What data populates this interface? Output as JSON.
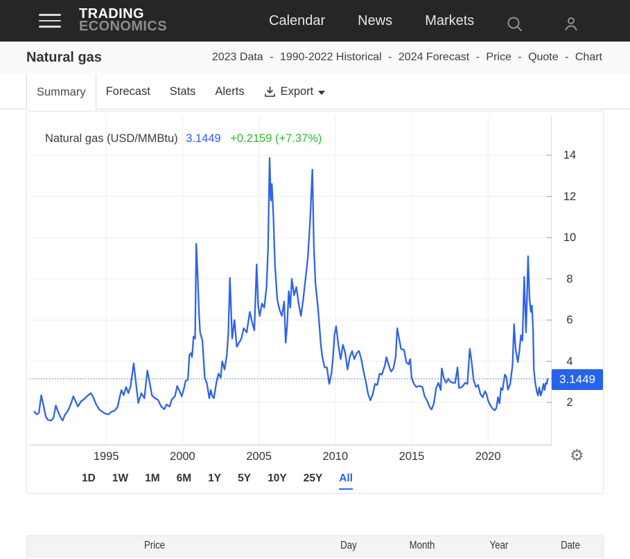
{
  "nav": {
    "brand_line1": "TRADING",
    "brand_line2": "ECONOMICS",
    "links": [
      "Calendar",
      "News",
      "Markets"
    ]
  },
  "header": {
    "title": "Natural gas",
    "breadcrumb": {
      "items": [
        "2023 Data",
        "1990-2022 Historical",
        "2024 Forecast",
        "Price",
        "Quote",
        "Chart"
      ],
      "separator": "-"
    }
  },
  "tabs": {
    "items": [
      "Summary",
      "Forecast",
      "Stats",
      "Alerts"
    ],
    "active": "Summary",
    "export_label": "Export"
  },
  "quote": {
    "instrument": "Natural gas (USD/MMBtu)",
    "value": "3.1449",
    "change": "+0.2159 (+7.37%)",
    "badge": "3.1449"
  },
  "colors": {
    "line": "#2e63e9",
    "badge": "#2563eb",
    "up_green": "#2db92d",
    "value_blue": "#2563eb"
  },
  "ranges": {
    "items": [
      "1D",
      "1W",
      "1M",
      "6M",
      "1Y",
      "5Y",
      "10Y",
      "25Y",
      "All"
    ],
    "active": "All"
  },
  "table": {
    "headers": [
      "Price",
      "Day",
      "Month",
      "Year",
      "Date"
    ]
  },
  "chart_data": {
    "type": "line",
    "title": "Natural gas (USD/MMBtu)",
    "ylabel": "USD/MMBtu",
    "current_value": 3.1449,
    "yticks": [
      2,
      4,
      6,
      8,
      10,
      12,
      14
    ],
    "xticks": [
      1995,
      2000,
      2005,
      2010,
      2015,
      2020
    ],
    "xlim": [
      1990,
      2024.2
    ],
    "ylim": [
      0,
      15.9
    ],
    "grid": true,
    "legend_position": "top-left",
    "points": [
      [
        1990.3,
        1.55
      ],
      [
        1990.45,
        1.42
      ],
      [
        1990.6,
        1.5
      ],
      [
        1990.75,
        2.35
      ],
      [
        1990.9,
        1.85
      ],
      [
        1991.05,
        1.3
      ],
      [
        1991.2,
        1.15
      ],
      [
        1991.4,
        1.12
      ],
      [
        1991.55,
        1.25
      ],
      [
        1991.7,
        1.85
      ],
      [
        1991.85,
        1.55
      ],
      [
        1992.0,
        1.3
      ],
      [
        1992.15,
        1.12
      ],
      [
        1992.3,
        1.4
      ],
      [
        1992.5,
        1.6
      ],
      [
        1992.7,
        1.95
      ],
      [
        1992.85,
        2.3
      ],
      [
        1993.0,
        2.05
      ],
      [
        1993.15,
        1.8
      ],
      [
        1993.35,
        2.05
      ],
      [
        1993.55,
        2.15
      ],
      [
        1993.75,
        2.3
      ],
      [
        1993.9,
        2.4
      ],
      [
        1994.0,
        2.45
      ],
      [
        1994.15,
        2.25
      ],
      [
        1994.35,
        1.9
      ],
      [
        1994.55,
        1.65
      ],
      [
        1994.75,
        1.55
      ],
      [
        1994.95,
        1.45
      ],
      [
        1995.15,
        1.42
      ],
      [
        1995.35,
        1.55
      ],
      [
        1995.55,
        1.6
      ],
      [
        1995.75,
        1.78
      ],
      [
        1995.9,
        2.3
      ],
      [
        1996.0,
        2.6
      ],
      [
        1996.15,
        2.35
      ],
      [
        1996.3,
        2.75
      ],
      [
        1996.45,
        2.45
      ],
      [
        1996.6,
        2.8
      ],
      [
        1996.8,
        3.9
      ],
      [
        1996.95,
        2.95
      ],
      [
        1997.1,
        1.98
      ],
      [
        1997.3,
        2.45
      ],
      [
        1997.5,
        2.2
      ],
      [
        1997.7,
        3.55
      ],
      [
        1997.85,
        2.95
      ],
      [
        1998.0,
        2.34
      ],
      [
        1998.2,
        2.2
      ],
      [
        1998.4,
        2.12
      ],
      [
        1998.6,
        1.8
      ],
      [
        1998.8,
        1.67
      ],
      [
        1998.95,
        1.9
      ],
      [
        1999.15,
        1.8
      ],
      [
        1999.3,
        2.15
      ],
      [
        1999.5,
        2.3
      ],
      [
        1999.65,
        2.8
      ],
      [
        1999.8,
        2.55
      ],
      [
        1999.95,
        2.3
      ],
      [
        2000.1,
        2.7
      ],
      [
        2000.2,
        3.05
      ],
      [
        2000.35,
        3.1
      ],
      [
        2000.45,
        4.3
      ],
      [
        2000.55,
        4.4
      ],
      [
        2000.62,
        4.2
      ],
      [
        2000.72,
        5.2
      ],
      [
        2000.82,
        5.1
      ],
      [
        2000.9,
        9.7
      ],
      [
        2001.0,
        8.0
      ],
      [
        2001.08,
        6.3
      ],
      [
        2001.15,
        5.4
      ],
      [
        2001.3,
        5.0
      ],
      [
        2001.45,
        3.2
      ],
      [
        2001.6,
        2.9
      ],
      [
        2001.75,
        2.2
      ],
      [
        2001.85,
        2.6
      ],
      [
        2001.95,
        2.3
      ],
      [
        2002.05,
        2.2
      ],
      [
        2002.2,
        2.9
      ],
      [
        2002.35,
        3.4
      ],
      [
        2002.5,
        3.2
      ],
      [
        2002.6,
        4.0
      ],
      [
        2002.75,
        3.6
      ],
      [
        2002.9,
        4.3
      ],
      [
        2003.0,
        5.4
      ],
      [
        2003.1,
        8.05
      ],
      [
        2003.25,
        5.1
      ],
      [
        2003.4,
        6.0
      ],
      [
        2003.55,
        4.7
      ],
      [
        2003.7,
        4.9
      ],
      [
        2003.85,
        5.1
      ],
      [
        2004.0,
        5.6
      ],
      [
        2004.2,
        5.4
      ],
      [
        2004.4,
        6.4
      ],
      [
        2004.55,
        5.9
      ],
      [
        2004.7,
        5.5
      ],
      [
        2004.85,
        8.7
      ],
      [
        2004.95,
        6.7
      ],
      [
        2005.05,
        6.2
      ],
      [
        2005.2,
        6.8
      ],
      [
        2005.35,
        6.6
      ],
      [
        2005.5,
        7.6
      ],
      [
        2005.6,
        9.5
      ],
      [
        2005.7,
        13.87
      ],
      [
        2005.78,
        11.8
      ],
      [
        2005.85,
        12.6
      ],
      [
        2005.95,
        11.0
      ],
      [
        2006.05,
        8.7
      ],
      [
        2006.2,
        7.0
      ],
      [
        2006.35,
        6.5
      ],
      [
        2006.5,
        6.2
      ],
      [
        2006.65,
        6.9
      ],
      [
        2006.75,
        4.9
      ],
      [
        2006.85,
        5.8
      ],
      [
        2006.95,
        7.4
      ],
      [
        2007.05,
        6.6
      ],
      [
        2007.15,
        8.0
      ],
      [
        2007.3,
        7.2
      ],
      [
        2007.45,
        7.6
      ],
      [
        2007.6,
        6.8
      ],
      [
        2007.75,
        6.2
      ],
      [
        2007.9,
        7.0
      ],
      [
        2008.05,
        8.0
      ],
      [
        2008.2,
        9.0
      ],
      [
        2008.35,
        10.8
      ],
      [
        2008.5,
        13.3
      ],
      [
        2008.6,
        9.5
      ],
      [
        2008.7,
        7.8
      ],
      [
        2008.85,
        6.7
      ],
      [
        2008.95,
        5.8
      ],
      [
        2009.05,
        4.8
      ],
      [
        2009.15,
        4.2
      ],
      [
        2009.3,
        3.7
      ],
      [
        2009.45,
        3.7
      ],
      [
        2009.6,
        2.9
      ],
      [
        2009.75,
        3.4
      ],
      [
        2009.85,
        4.2
      ],
      [
        2009.95,
        5.3
      ],
      [
        2010.05,
        5.7
      ],
      [
        2010.2,
        4.8
      ],
      [
        2010.35,
        4.1
      ],
      [
        2010.5,
        4.8
      ],
      [
        2010.65,
        4.4
      ],
      [
        2010.8,
        3.6
      ],
      [
        2010.95,
        4.2
      ],
      [
        2011.1,
        4.5
      ],
      [
        2011.25,
        4.1
      ],
      [
        2011.4,
        4.4
      ],
      [
        2011.55,
        4.5
      ],
      [
        2011.7,
        4.1
      ],
      [
        2011.85,
        3.5
      ],
      [
        2012.0,
        3.0
      ],
      [
        2012.15,
        2.4
      ],
      [
        2012.3,
        2.1
      ],
      [
        2012.45,
        2.4
      ],
      [
        2012.6,
        2.9
      ],
      [
        2012.75,
        2.85
      ],
      [
        2012.9,
        3.4
      ],
      [
        2013.05,
        3.35
      ],
      [
        2013.25,
        3.8
      ],
      [
        2013.35,
        4.2
      ],
      [
        2013.5,
        3.8
      ],
      [
        2013.65,
        3.5
      ],
      [
        2013.8,
        3.65
      ],
      [
        2013.95,
        4.2
      ],
      [
        2014.05,
        5.6
      ],
      [
        2014.3,
        4.6
      ],
      [
        2014.5,
        4.55
      ],
      [
        2014.65,
        3.95
      ],
      [
        2014.8,
        3.85
      ],
      [
        2014.9,
        4.1
      ],
      [
        2015.0,
        3.2
      ],
      [
        2015.15,
        2.9
      ],
      [
        2015.3,
        2.75
      ],
      [
        2015.5,
        2.8
      ],
      [
        2015.7,
        2.75
      ],
      [
        2015.85,
        2.3
      ],
      [
        2016.0,
        2.1
      ],
      [
        2016.2,
        1.75
      ],
      [
        2016.3,
        1.66
      ],
      [
        2016.45,
        1.95
      ],
      [
        2016.6,
        2.7
      ],
      [
        2016.75,
        2.95
      ],
      [
        2016.9,
        2.6
      ],
      [
        2016.97,
        3.65
      ],
      [
        2017.1,
        3.2
      ],
      [
        2017.25,
        2.95
      ],
      [
        2017.4,
        3.15
      ],
      [
        2017.55,
        3.0
      ],
      [
        2017.7,
        2.95
      ],
      [
        2017.85,
        2.95
      ],
      [
        2018.0,
        3.7
      ],
      [
        2018.1,
        2.7
      ],
      [
        2018.3,
        2.75
      ],
      [
        2018.5,
        2.95
      ],
      [
        2018.65,
        2.9
      ],
      [
        2018.8,
        4.6
      ],
      [
        2018.92,
        4.0
      ],
      [
        2019.05,
        3.1
      ],
      [
        2019.2,
        2.75
      ],
      [
        2019.35,
        2.85
      ],
      [
        2019.5,
        2.4
      ],
      [
        2019.65,
        2.25
      ],
      [
        2019.8,
        2.55
      ],
      [
        2019.9,
        2.4
      ],
      [
        2020.0,
        2.1
      ],
      [
        2020.15,
        1.85
      ],
      [
        2020.3,
        1.7
      ],
      [
        2020.45,
        1.62
      ],
      [
        2020.55,
        1.75
      ],
      [
        2020.65,
        2.25
      ],
      [
        2020.75,
        1.95
      ],
      [
        2020.85,
        2.7
      ],
      [
        2020.95,
        2.6
      ],
      [
        2021.1,
        3.35
      ],
      [
        2021.2,
        3.24
      ],
      [
        2021.3,
        2.62
      ],
      [
        2021.45,
        2.9
      ],
      [
        2021.6,
        3.8
      ],
      [
        2021.7,
        5.8
      ],
      [
        2021.8,
        4.6
      ],
      [
        2021.88,
        4.25
      ],
      [
        2021.95,
        3.96
      ],
      [
        2022.05,
        4.5
      ],
      [
        2022.15,
        5.26
      ],
      [
        2022.25,
        5.0
      ],
      [
        2022.37,
        8.1
      ],
      [
        2022.48,
        5.4
      ],
      [
        2022.56,
        7.3
      ],
      [
        2022.62,
        9.1
      ],
      [
        2022.72,
        7.0
      ],
      [
        2022.8,
        6.4
      ],
      [
        2022.87,
        6.7
      ],
      [
        2022.95,
        5.5
      ],
      [
        2023.0,
        3.57
      ],
      [
        2023.1,
        2.9
      ],
      [
        2023.2,
        2.5
      ],
      [
        2023.27,
        2.34
      ],
      [
        2023.35,
        2.73
      ],
      [
        2023.45,
        2.34
      ],
      [
        2023.55,
        2.6
      ],
      [
        2023.63,
        2.9
      ],
      [
        2023.7,
        2.6
      ],
      [
        2023.78,
        2.95
      ],
      [
        2023.85,
        2.9
      ],
      [
        2023.9,
        3.14
      ]
    ]
  }
}
